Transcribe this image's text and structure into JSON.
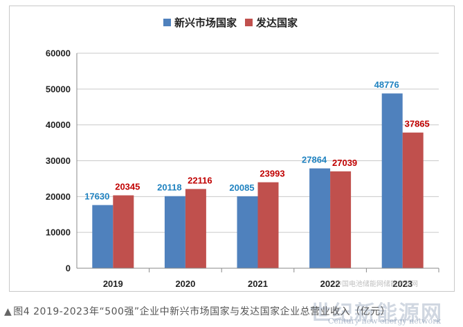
{
  "chart_data": {
    "type": "bar",
    "categories": [
      "2019",
      "2020",
      "2021",
      "2022",
      "2023"
    ],
    "series": [
      {
        "name": "新兴市场国家",
        "values": [
          17630,
          20118,
          20085,
          27864,
          48776
        ],
        "color": "#4f81bd",
        "label_color": "#1f82c0"
      },
      {
        "name": "发达国家",
        "values": [
          20345,
          22116,
          23993,
          27039,
          37865
        ],
        "color": "#c0504d",
        "label_color": "#c00000"
      }
    ],
    "ylim": [
      0,
      60000
    ],
    "yticks": [
      "0",
      "10000",
      "20000",
      "30000",
      "40000",
      "50000",
      "60000"
    ],
    "grid": true,
    "legend_position": "top-center"
  },
  "caption": {
    "marker": "▲",
    "text": "图4 2019-2023年“500强”企业中新兴市场国家与发达国家企业总营业收入（亿元）"
  },
  "watermark": {
    "cn": "世纪新能源网",
    "en": "Century new energy network",
    "small": "中国电池储能网储能产业网"
  }
}
